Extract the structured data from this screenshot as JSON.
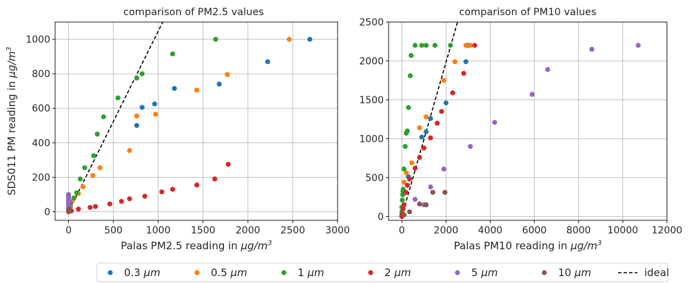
{
  "chart_data": [
    {
      "id": "pm25",
      "type": "scatter",
      "title": "comparison of PM2.5 values",
      "xlabel_prefix": "Palas PM2.5 reading in ",
      "ylabel_prefix": "SDS011 PM reading in ",
      "unit_main": "μg/m",
      "unit_exp": "3",
      "xlim": [
        -150,
        3000
      ],
      "ylim": [
        -50,
        1100
      ],
      "xticks": [
        0,
        500,
        1000,
        1500,
        2000,
        2500,
        3000
      ],
      "yticks": [
        0,
        200,
        400,
        600,
        800,
        1000
      ],
      "grid": true,
      "ideal_line": [
        [
          0,
          0
        ],
        [
          1050,
          1100
        ]
      ],
      "series": [
        {
          "name": "0.3 μm",
          "color": "#1f77b4",
          "points": [
            [
              0,
              0
            ],
            [
              10,
              20
            ],
            [
              20,
              30
            ],
            [
              760,
              500
            ],
            [
              820,
              605
            ],
            [
              960,
              625
            ],
            [
              1180,
              715
            ],
            [
              1680,
              740
            ],
            [
              2220,
              870
            ],
            [
              2690,
              1000
            ]
          ]
        },
        {
          "name": "0.5 μm",
          "color": "#ff7f0e",
          "points": [
            [
              0,
              0
            ],
            [
              15,
              35
            ],
            [
              40,
              60
            ],
            [
              110,
              105
            ],
            [
              160,
              145
            ],
            [
              270,
              210
            ],
            [
              350,
              255
            ],
            [
              680,
              355
            ],
            [
              760,
              555
            ],
            [
              970,
              565
            ],
            [
              1430,
              705
            ],
            [
              1770,
              795
            ],
            [
              2460,
              1000
            ]
          ]
        },
        {
          "name": "1 μm",
          "color": "#2ca02c",
          "points": [
            [
              0,
              0
            ],
            [
              20,
              50
            ],
            [
              60,
              80
            ],
            [
              90,
              110
            ],
            [
              130,
              190
            ],
            [
              180,
              255
            ],
            [
              280,
              325
            ],
            [
              320,
              450
            ],
            [
              390,
              550
            ],
            [
              550,
              660
            ],
            [
              760,
              775
            ],
            [
              820,
              800
            ],
            [
              1160,
              915
            ],
            [
              1640,
              1000
            ]
          ]
        },
        {
          "name": "2 μm",
          "color": "#d62728",
          "points": [
            [
              0,
              0
            ],
            [
              30,
              5
            ],
            [
              110,
              15
            ],
            [
              240,
              25
            ],
            [
              300,
              30
            ],
            [
              460,
              45
            ],
            [
              590,
              60
            ],
            [
              680,
              75
            ],
            [
              850,
              90
            ],
            [
              1040,
              115
            ],
            [
              1160,
              130
            ],
            [
              1430,
              155
            ],
            [
              1630,
              190
            ],
            [
              1780,
              275
            ]
          ]
        },
        {
          "name": "5 μm",
          "color": "#9467bd",
          "points": [
            [
              0,
              10
            ],
            [
              0,
              20
            ],
            [
              0,
              30
            ],
            [
              0,
              40
            ],
            [
              0,
              50
            ],
            [
              0,
              60
            ],
            [
              0,
              70
            ],
            [
              0,
              80
            ],
            [
              0,
              90
            ],
            [
              0,
              100
            ]
          ]
        },
        {
          "name": "10 μm",
          "color": "#8c564b",
          "points": [
            [
              0,
              2
            ],
            [
              0,
              5
            ],
            [
              0,
              8
            ],
            [
              5,
              10
            ],
            [
              5,
              12
            ],
            [
              10,
              15
            ]
          ]
        }
      ]
    },
    {
      "id": "pm10",
      "type": "scatter",
      "title": "comparison of PM10 values",
      "xlabel_prefix": "Palas PM10 reading in ",
      "ylabel_prefix": "",
      "unit_main": "μg/m",
      "unit_exp": "3",
      "xlim": [
        -600,
        12000
      ],
      "ylim": [
        -50,
        2500
      ],
      "xticks": [
        0,
        2000,
        4000,
        6000,
        8000,
        10000,
        12000
      ],
      "yticks": [
        0,
        500,
        1000,
        1500,
        2000,
        2500
      ],
      "grid": true,
      "ideal_line": [
        [
          0,
          0
        ],
        [
          2520,
          2500
        ]
      ],
      "series": [
        {
          "name": "0.3 μm",
          "color": "#1f77b4",
          "points": [
            [
              0,
              0
            ],
            [
              50,
              100
            ],
            [
              300,
              510
            ],
            [
              900,
              1020
            ],
            [
              1100,
              1090
            ],
            [
              1300,
              1260
            ],
            [
              2000,
              1460
            ],
            [
              2900,
              1990
            ],
            [
              3000,
              2200
            ]
          ]
        },
        {
          "name": "0.5 μm",
          "color": "#ff7f0e",
          "points": [
            [
              0,
              0
            ],
            [
              100,
              440
            ],
            [
              200,
              560
            ],
            [
              450,
              690
            ],
            [
              800,
              1140
            ],
            [
              1100,
              1280
            ],
            [
              1900,
              1750
            ],
            [
              2400,
              1990
            ],
            [
              2900,
              2200
            ],
            [
              3100,
              2200
            ]
          ]
        },
        {
          "name": "1 μm",
          "color": "#2ca02c",
          "points": [
            [
              0,
              20
            ],
            [
              0,
              60
            ],
            [
              0,
              120
            ],
            [
              20,
              210
            ],
            [
              40,
              280
            ],
            [
              50,
              320
            ],
            [
              60,
              350
            ],
            [
              100,
              610
            ],
            [
              150,
              900
            ],
            [
              200,
              1070
            ],
            [
              250,
              1100
            ],
            [
              300,
              1400
            ],
            [
              380,
              1810
            ],
            [
              420,
              2070
            ],
            [
              600,
              2200
            ],
            [
              900,
              2200
            ],
            [
              1100,
              2200
            ],
            [
              1500,
              2200
            ],
            [
              2200,
              2200
            ]
          ]
        },
        {
          "name": "2 μm",
          "color": "#d62728",
          "points": [
            [
              0,
              0
            ],
            [
              30,
              30
            ],
            [
              60,
              100
            ],
            [
              100,
              150
            ],
            [
              180,
              310
            ],
            [
              250,
              400
            ],
            [
              350,
              480
            ],
            [
              600,
              620
            ],
            [
              800,
              760
            ],
            [
              1000,
              880
            ],
            [
              1300,
              1010
            ],
            [
              1600,
              1200
            ],
            [
              1800,
              1350
            ],
            [
              2300,
              1590
            ],
            [
              2800,
              1840
            ],
            [
              3300,
              2200
            ]
          ]
        },
        {
          "name": "5 μm",
          "color": "#9467bd",
          "points": [
            [
              600,
              220
            ],
            [
              1000,
              150
            ],
            [
              1300,
              380
            ],
            [
              1900,
              610
            ],
            [
              3100,
              900
            ],
            [
              4200,
              1210
            ],
            [
              5900,
              1570
            ],
            [
              6600,
              1890
            ],
            [
              8600,
              2150
            ],
            [
              10700,
              2200
            ]
          ]
        },
        {
          "name": "10 μm",
          "color": "#8c564b",
          "points": [
            [
              100,
              20
            ],
            [
              350,
              60
            ],
            [
              800,
              160
            ],
            [
              1100,
              150
            ],
            [
              1400,
              310
            ],
            [
              1950,
              310
            ]
          ]
        }
      ]
    }
  ],
  "legend": {
    "items": [
      {
        "label": "0.3 μm",
        "color": "#1f77b4",
        "kind": "marker"
      },
      {
        "label": "0.5 μm",
        "color": "#ff7f0e",
        "kind": "marker"
      },
      {
        "label": "1 μm",
        "color": "#2ca02c",
        "kind": "marker"
      },
      {
        "label": "2 μm",
        "color": "#d62728",
        "kind": "marker"
      },
      {
        "label": "5 μm",
        "color": "#9467bd",
        "kind": "marker"
      },
      {
        "label": "10 μm",
        "color": "#8c564b",
        "kind": "marker"
      },
      {
        "label": "ideal",
        "color": "#000000",
        "kind": "dashed-line"
      }
    ]
  }
}
